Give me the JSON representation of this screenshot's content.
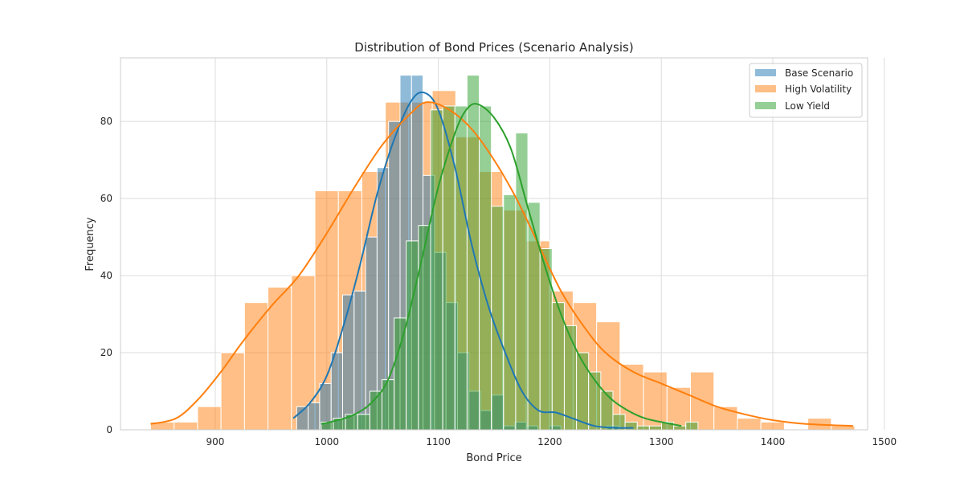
{
  "chart_data": {
    "type": "histogram",
    "title": "Distribution of Bond Prices (Scenario Analysis)",
    "xlabel": "Bond Price",
    "ylabel": "Frequency",
    "xlim": [
      815,
      1485
    ],
    "ylim": [
      0,
      96.5
    ],
    "xticks": [
      900,
      1000,
      1100,
      1200,
      1300,
      1400,
      1500
    ],
    "yticks": [
      0,
      20,
      40,
      60,
      80
    ],
    "grid": true,
    "legend_position": "top-right",
    "series": [
      {
        "name": "Base Scenario",
        "color": "#1f77b4",
        "bin_start": 973,
        "bin_width": 10.3,
        "counts": [
          6,
          7,
          12,
          20,
          35,
          36,
          50,
          68,
          80,
          92,
          92,
          66,
          46,
          33,
          20,
          10,
          5,
          9,
          1,
          2,
          1,
          0,
          1,
          0,
          0,
          0,
          0,
          1
        ],
        "kde": [
          [
            970,
            3
          ],
          [
            985,
            7
          ],
          [
            1000,
            14
          ],
          [
            1015,
            27
          ],
          [
            1030,
            43
          ],
          [
            1045,
            61
          ],
          [
            1060,
            75
          ],
          [
            1075,
            85
          ],
          [
            1087,
            87.5
          ],
          [
            1100,
            83
          ],
          [
            1115,
            68
          ],
          [
            1130,
            48
          ],
          [
            1145,
            32
          ],
          [
            1160,
            20
          ],
          [
            1175,
            10
          ],
          [
            1190,
            5
          ],
          [
            1205,
            4.5
          ],
          [
            1220,
            3
          ],
          [
            1240,
            1
          ],
          [
            1260,
            0.5
          ],
          [
            1275,
            0.5
          ]
        ]
      },
      {
        "name": "High Volatility",
        "color": "#ff7f0e",
        "bin_start": 842,
        "bin_width": 21.05,
        "counts": [
          2,
          2,
          6,
          20,
          33,
          37,
          40,
          62,
          62,
          67,
          85,
          85,
          88,
          76,
          67,
          57,
          49,
          36,
          33,
          28,
          17,
          15,
          11,
          15,
          6,
          3,
          2,
          0,
          3,
          1
        ],
        "kde": [
          [
            842,
            1.5
          ],
          [
            865,
            3
          ],
          [
            885,
            8
          ],
          [
            905,
            15
          ],
          [
            925,
            23
          ],
          [
            950,
            32
          ],
          [
            975,
            40
          ],
          [
            1000,
            51
          ],
          [
            1025,
            63
          ],
          [
            1050,
            74
          ],
          [
            1075,
            82
          ],
          [
            1090,
            85
          ],
          [
            1110,
            83
          ],
          [
            1130,
            78
          ],
          [
            1150,
            70
          ],
          [
            1170,
            60
          ],
          [
            1190,
            48
          ],
          [
            1210,
            36
          ],
          [
            1230,
            27
          ],
          [
            1250,
            20
          ],
          [
            1275,
            15
          ],
          [
            1300,
            12
          ],
          [
            1325,
            9
          ],
          [
            1350,
            6
          ],
          [
            1375,
            4
          ],
          [
            1400,
            2.5
          ],
          [
            1430,
            1.5
          ],
          [
            1472,
            1
          ]
        ]
      },
      {
        "name": "Low Yield",
        "color": "#2ca02c",
        "bin_start": 995,
        "bin_width": 10.9,
        "counts": [
          2,
          3,
          4,
          4,
          10,
          13,
          29,
          49,
          53,
          83,
          84,
          84,
          92,
          84,
          58,
          61,
          77,
          59,
          47,
          33,
          27,
          20,
          15,
          10,
          4,
          2,
          1,
          1,
          2,
          1,
          2
        ],
        "kde": [
          [
            995,
            1.5
          ],
          [
            1010,
            2.5
          ],
          [
            1025,
            4
          ],
          [
            1040,
            7
          ],
          [
            1055,
            13
          ],
          [
            1070,
            26
          ],
          [
            1085,
            44
          ],
          [
            1100,
            63
          ],
          [
            1115,
            77
          ],
          [
            1125,
            83
          ],
          [
            1135,
            84.5
          ],
          [
            1150,
            81
          ],
          [
            1165,
            73
          ],
          [
            1180,
            58
          ],
          [
            1195,
            43
          ],
          [
            1210,
            30
          ],
          [
            1225,
            20
          ],
          [
            1240,
            13
          ],
          [
            1255,
            8
          ],
          [
            1270,
            5
          ],
          [
            1285,
            3
          ],
          [
            1300,
            2
          ],
          [
            1318,
            1
          ]
        ]
      }
    ]
  }
}
